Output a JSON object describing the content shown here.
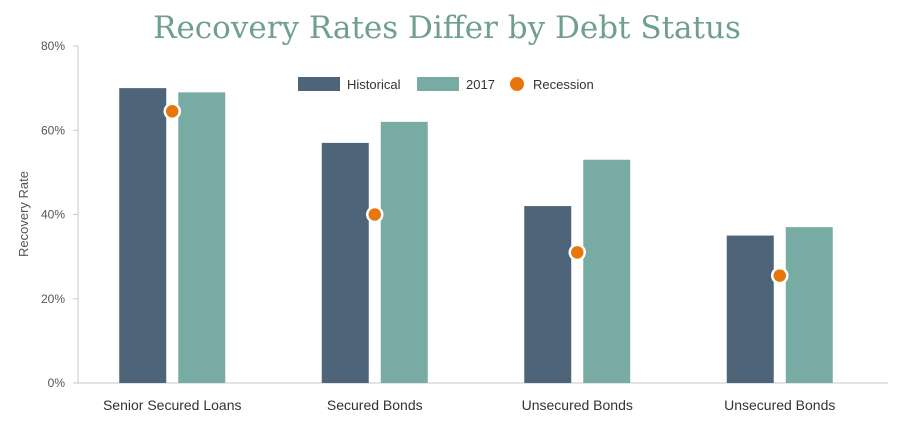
{
  "chart_data": {
    "type": "bar",
    "title": "Recovery Rates Differ by Debt Status",
    "xlabel": "",
    "ylabel": "Recovery Rate",
    "categories": [
      "Senior Secured Loans",
      "Secured Bonds",
      "Unsecured Bonds",
      "Unsecured Bonds"
    ],
    "series": [
      {
        "name": "Historical",
        "type": "bar",
        "color": "#4e6478",
        "values": [
          70,
          57,
          42,
          35
        ]
      },
      {
        "name": "2017",
        "type": "bar",
        "color": "#78aba3",
        "values": [
          69,
          62,
          53,
          37
        ]
      },
      {
        "name": "Recession",
        "type": "scatter",
        "color": "#e8760a",
        "values": [
          64.5,
          40,
          31,
          25.5
        ]
      }
    ],
    "ylim": [
      0,
      80
    ],
    "yticks": [
      0,
      20,
      40,
      60,
      80
    ],
    "ytick_labels": [
      "0%",
      "20%",
      "40%",
      "60%",
      "80%"
    ],
    "grid": false,
    "legend_position": "top-center"
  }
}
